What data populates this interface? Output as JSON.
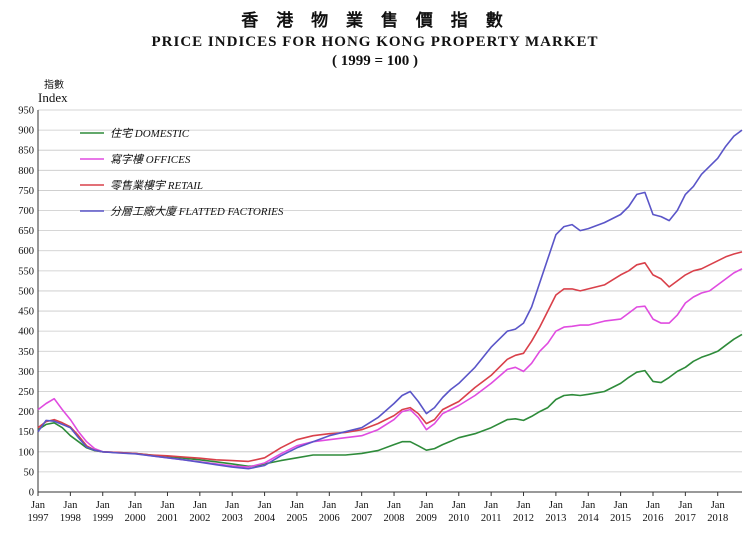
{
  "title_cn": "香 港 物 業 售 價 指 數",
  "title_en": "PRICE INDICES FOR HONG KONG PROPERTY MARKET",
  "title_base": "( 1999 = 100 )",
  "ylabel_cn": "指數",
  "ylabel_en": "Index",
  "chart_data": {
    "type": "line",
    "title": "PRICE INDICES FOR HONG KONG PROPERTY MARKET",
    "subtitle": "( 1999 = 100 )",
    "xlabel": "",
    "ylabel": "Index",
    "ylim": [
      0,
      950
    ],
    "xlim": [
      1997.0,
      2018.75
    ],
    "yticks": [
      0,
      50,
      100,
      150,
      200,
      250,
      300,
      350,
      400,
      450,
      500,
      550,
      600,
      650,
      700,
      750,
      800,
      850,
      900,
      950
    ],
    "xticks": [
      {
        "year": 1997,
        "label_top": "Jan",
        "label_bottom": "1997"
      },
      {
        "year": 1998,
        "label_top": "Jan",
        "label_bottom": "1998"
      },
      {
        "year": 1999,
        "label_top": "Jan",
        "label_bottom": "1999"
      },
      {
        "year": 2000,
        "label_top": "Jan",
        "label_bottom": "2000"
      },
      {
        "year": 2001,
        "label_top": "Jan",
        "label_bottom": "2001"
      },
      {
        "year": 2002,
        "label_top": "Jan",
        "label_bottom": "2002"
      },
      {
        "year": 2003,
        "label_top": "Jan",
        "label_bottom": "2003"
      },
      {
        "year": 2004,
        "label_top": "Jan",
        "label_bottom": "2004"
      },
      {
        "year": 2005,
        "label_top": "Jan",
        "label_bottom": "2005"
      },
      {
        "year": 2006,
        "label_top": "Jan",
        "label_bottom": "2006"
      },
      {
        "year": 2007,
        "label_top": "Jan",
        "label_bottom": "2007"
      },
      {
        "year": 2008,
        "label_top": "Jan",
        "label_bottom": "2008"
      },
      {
        "year": 2009,
        "label_top": "Jan",
        "label_bottom": "2009"
      },
      {
        "year": 2010,
        "label_top": "Jan",
        "label_bottom": "2010"
      },
      {
        "year": 2011,
        "label_top": "Jan",
        "label_bottom": "2011"
      },
      {
        "year": 2012,
        "label_top": "Jan",
        "label_bottom": "2012"
      },
      {
        "year": 2013,
        "label_top": "Jan",
        "label_bottom": "2013"
      },
      {
        "year": 2014,
        "label_top": "Jan",
        "label_bottom": "2014"
      },
      {
        "year": 2015,
        "label_top": "Jan",
        "label_bottom": "2015"
      },
      {
        "year": 2016,
        "label_top": "Jan",
        "label_bottom": "2016"
      },
      {
        "year": 2017,
        "label_top": "Jan",
        "label_bottom": "2017"
      },
      {
        "year": 2018,
        "label_top": "Jan",
        "label_bottom": "2018"
      }
    ],
    "grid": "horizontal",
    "legend_position": "top-left",
    "series": [
      {
        "name": "住宅 DOMESTIC",
        "color": "#2e8b3a",
        "points": [
          [
            1997.0,
            155
          ],
          [
            1997.25,
            168
          ],
          [
            1997.5,
            172
          ],
          [
            1997.75,
            160
          ],
          [
            1998.0,
            140
          ],
          [
            1998.25,
            125
          ],
          [
            1998.5,
            110
          ],
          [
            1998.75,
            103
          ],
          [
            1999.0,
            100
          ],
          [
            1999.5,
            98
          ],
          [
            2000.0,
            96
          ],
          [
            2000.5,
            92
          ],
          [
            2001.0,
            88
          ],
          [
            2001.5,
            84
          ],
          [
            2002.0,
            80
          ],
          [
            2002.5,
            75
          ],
          [
            2003.0,
            70
          ],
          [
            2003.5,
            64
          ],
          [
            2003.75,
            65
          ],
          [
            2004.0,
            70
          ],
          [
            2004.5,
            78
          ],
          [
            2005.0,
            85
          ],
          [
            2005.5,
            92
          ],
          [
            2006.0,
            92
          ],
          [
            2006.5,
            92
          ],
          [
            2007.0,
            96
          ],
          [
            2007.5,
            103
          ],
          [
            2008.0,
            118
          ],
          [
            2008.25,
            125
          ],
          [
            2008.5,
            125
          ],
          [
            2008.75,
            115
          ],
          [
            2009.0,
            104
          ],
          [
            2009.25,
            108
          ],
          [
            2009.5,
            118
          ],
          [
            2009.75,
            126
          ],
          [
            2010.0,
            135
          ],
          [
            2010.5,
            145
          ],
          [
            2011.0,
            160
          ],
          [
            2011.5,
            180
          ],
          [
            2011.75,
            182
          ],
          [
            2012.0,
            178
          ],
          [
            2012.25,
            188
          ],
          [
            2012.5,
            200
          ],
          [
            2012.75,
            210
          ],
          [
            2013.0,
            230
          ],
          [
            2013.25,
            240
          ],
          [
            2013.5,
            242
          ],
          [
            2013.75,
            240
          ],
          [
            2014.0,
            243
          ],
          [
            2014.5,
            250
          ],
          [
            2015.0,
            270
          ],
          [
            2015.25,
            285
          ],
          [
            2015.5,
            298
          ],
          [
            2015.75,
            302
          ],
          [
            2016.0,
            275
          ],
          [
            2016.25,
            272
          ],
          [
            2016.5,
            285
          ],
          [
            2016.75,
            300
          ],
          [
            2017.0,
            310
          ],
          [
            2017.25,
            325
          ],
          [
            2017.5,
            335
          ],
          [
            2017.75,
            342
          ],
          [
            2018.0,
            350
          ],
          [
            2018.25,
            365
          ],
          [
            2018.5,
            380
          ],
          [
            2018.75,
            392
          ]
        ]
      },
      {
        "name": "寫字樓 OFFICES",
        "color": "#e04ce0",
        "points": [
          [
            1997.0,
            205
          ],
          [
            1997.25,
            220
          ],
          [
            1997.5,
            232
          ],
          [
            1997.75,
            205
          ],
          [
            1998.0,
            180
          ],
          [
            1998.25,
            150
          ],
          [
            1998.5,
            125
          ],
          [
            1998.75,
            108
          ],
          [
            1999.0,
            100
          ],
          [
            1999.5,
            98
          ],
          [
            2000.0,
            96
          ],
          [
            2000.5,
            90
          ],
          [
            2001.0,
            85
          ],
          [
            2001.5,
            80
          ],
          [
            2002.0,
            75
          ],
          [
            2002.5,
            70
          ],
          [
            2003.0,
            65
          ],
          [
            2003.5,
            62
          ],
          [
            2004.0,
            72
          ],
          [
            2004.5,
            95
          ],
          [
            2005.0,
            115
          ],
          [
            2005.5,
            125
          ],
          [
            2006.0,
            130
          ],
          [
            2006.5,
            135
          ],
          [
            2007.0,
            140
          ],
          [
            2007.5,
            155
          ],
          [
            2008.0,
            180
          ],
          [
            2008.25,
            200
          ],
          [
            2008.5,
            205
          ],
          [
            2008.75,
            185
          ],
          [
            2009.0,
            155
          ],
          [
            2009.25,
            170
          ],
          [
            2009.5,
            195
          ],
          [
            2009.75,
            205
          ],
          [
            2010.0,
            215
          ],
          [
            2010.5,
            240
          ],
          [
            2011.0,
            270
          ],
          [
            2011.5,
            305
          ],
          [
            2011.75,
            310
          ],
          [
            2012.0,
            300
          ],
          [
            2012.25,
            320
          ],
          [
            2012.5,
            350
          ],
          [
            2012.75,
            370
          ],
          [
            2013.0,
            400
          ],
          [
            2013.25,
            410
          ],
          [
            2013.5,
            412
          ],
          [
            2013.75,
            415
          ],
          [
            2014.0,
            415
          ],
          [
            2014.5,
            425
          ],
          [
            2015.0,
            430
          ],
          [
            2015.25,
            445
          ],
          [
            2015.5,
            460
          ],
          [
            2015.75,
            462
          ],
          [
            2016.0,
            430
          ],
          [
            2016.25,
            420
          ],
          [
            2016.5,
            420
          ],
          [
            2016.75,
            440
          ],
          [
            2017.0,
            470
          ],
          [
            2017.25,
            485
          ],
          [
            2017.5,
            495
          ],
          [
            2017.75,
            500
          ],
          [
            2018.0,
            515
          ],
          [
            2018.25,
            530
          ],
          [
            2018.5,
            545
          ],
          [
            2018.75,
            555
          ]
        ]
      },
      {
        "name": "零售業樓宇 RETAIL",
        "color": "#d9404a",
        "points": [
          [
            1997.0,
            160
          ],
          [
            1997.25,
            175
          ],
          [
            1997.5,
            180
          ],
          [
            1997.75,
            172
          ],
          [
            1998.0,
            162
          ],
          [
            1998.25,
            140
          ],
          [
            1998.5,
            115
          ],
          [
            1998.75,
            104
          ],
          [
            1999.0,
            100
          ],
          [
            1999.5,
            98
          ],
          [
            2000.0,
            96
          ],
          [
            2000.5,
            92
          ],
          [
            2001.0,
            90
          ],
          [
            2001.5,
            87
          ],
          [
            2002.0,
            84
          ],
          [
            2002.5,
            80
          ],
          [
            2003.0,
            78
          ],
          [
            2003.5,
            76
          ],
          [
            2004.0,
            85
          ],
          [
            2004.5,
            110
          ],
          [
            2005.0,
            130
          ],
          [
            2005.5,
            140
          ],
          [
            2006.0,
            145
          ],
          [
            2006.5,
            148
          ],
          [
            2007.0,
            155
          ],
          [
            2007.5,
            170
          ],
          [
            2008.0,
            190
          ],
          [
            2008.25,
            205
          ],
          [
            2008.5,
            210
          ],
          [
            2008.75,
            195
          ],
          [
            2009.0,
            170
          ],
          [
            2009.25,
            180
          ],
          [
            2009.5,
            205
          ],
          [
            2009.75,
            215
          ],
          [
            2010.0,
            225
          ],
          [
            2010.5,
            260
          ],
          [
            2011.0,
            290
          ],
          [
            2011.5,
            330
          ],
          [
            2011.75,
            340
          ],
          [
            2012.0,
            345
          ],
          [
            2012.25,
            375
          ],
          [
            2012.5,
            410
          ],
          [
            2012.75,
            450
          ],
          [
            2013.0,
            490
          ],
          [
            2013.25,
            505
          ],
          [
            2013.5,
            505
          ],
          [
            2013.75,
            500
          ],
          [
            2014.0,
            505
          ],
          [
            2014.5,
            515
          ],
          [
            2015.0,
            540
          ],
          [
            2015.25,
            550
          ],
          [
            2015.5,
            565
          ],
          [
            2015.75,
            570
          ],
          [
            2016.0,
            540
          ],
          [
            2016.25,
            530
          ],
          [
            2016.5,
            510
          ],
          [
            2016.75,
            525
          ],
          [
            2017.0,
            540
          ],
          [
            2017.25,
            550
          ],
          [
            2017.5,
            555
          ],
          [
            2017.75,
            565
          ],
          [
            2018.0,
            575
          ],
          [
            2018.25,
            585
          ],
          [
            2018.5,
            592
          ],
          [
            2018.75,
            597
          ]
        ]
      },
      {
        "name": "分層工廠大廈 FLATTED FACTORIES",
        "color": "#5a55c8",
        "points": [
          [
            1997.0,
            150
          ],
          [
            1997.25,
            178
          ],
          [
            1997.5,
            176
          ],
          [
            1997.75,
            168
          ],
          [
            1998.0,
            160
          ],
          [
            1998.25,
            135
          ],
          [
            1998.5,
            112
          ],
          [
            1998.75,
            104
          ],
          [
            1999.0,
            100
          ],
          [
            1999.5,
            97
          ],
          [
            2000.0,
            95
          ],
          [
            2000.5,
            90
          ],
          [
            2001.0,
            85
          ],
          [
            2001.5,
            80
          ],
          [
            2002.0,
            74
          ],
          [
            2002.5,
            68
          ],
          [
            2003.0,
            62
          ],
          [
            2003.5,
            58
          ],
          [
            2004.0,
            66
          ],
          [
            2004.5,
            90
          ],
          [
            2005.0,
            110
          ],
          [
            2005.5,
            125
          ],
          [
            2006.0,
            140
          ],
          [
            2006.5,
            150
          ],
          [
            2007.0,
            160
          ],
          [
            2007.5,
            185
          ],
          [
            2008.0,
            220
          ],
          [
            2008.25,
            240
          ],
          [
            2008.5,
            250
          ],
          [
            2008.75,
            225
          ],
          [
            2009.0,
            195
          ],
          [
            2009.25,
            210
          ],
          [
            2009.5,
            235
          ],
          [
            2009.75,
            255
          ],
          [
            2010.0,
            270
          ],
          [
            2010.5,
            310
          ],
          [
            2011.0,
            360
          ],
          [
            2011.5,
            400
          ],
          [
            2011.75,
            405
          ],
          [
            2012.0,
            420
          ],
          [
            2012.25,
            460
          ],
          [
            2012.5,
            520
          ],
          [
            2012.75,
            580
          ],
          [
            2013.0,
            640
          ],
          [
            2013.25,
            660
          ],
          [
            2013.5,
            665
          ],
          [
            2013.75,
            650
          ],
          [
            2014.0,
            655
          ],
          [
            2014.5,
            670
          ],
          [
            2015.0,
            690
          ],
          [
            2015.25,
            710
          ],
          [
            2015.5,
            740
          ],
          [
            2015.75,
            745
          ],
          [
            2016.0,
            690
          ],
          [
            2016.25,
            685
          ],
          [
            2016.5,
            675
          ],
          [
            2016.75,
            700
          ],
          [
            2017.0,
            740
          ],
          [
            2017.25,
            760
          ],
          [
            2017.5,
            790
          ],
          [
            2017.75,
            810
          ],
          [
            2018.0,
            830
          ],
          [
            2018.25,
            860
          ],
          [
            2018.5,
            885
          ],
          [
            2018.75,
            900
          ]
        ]
      }
    ]
  }
}
